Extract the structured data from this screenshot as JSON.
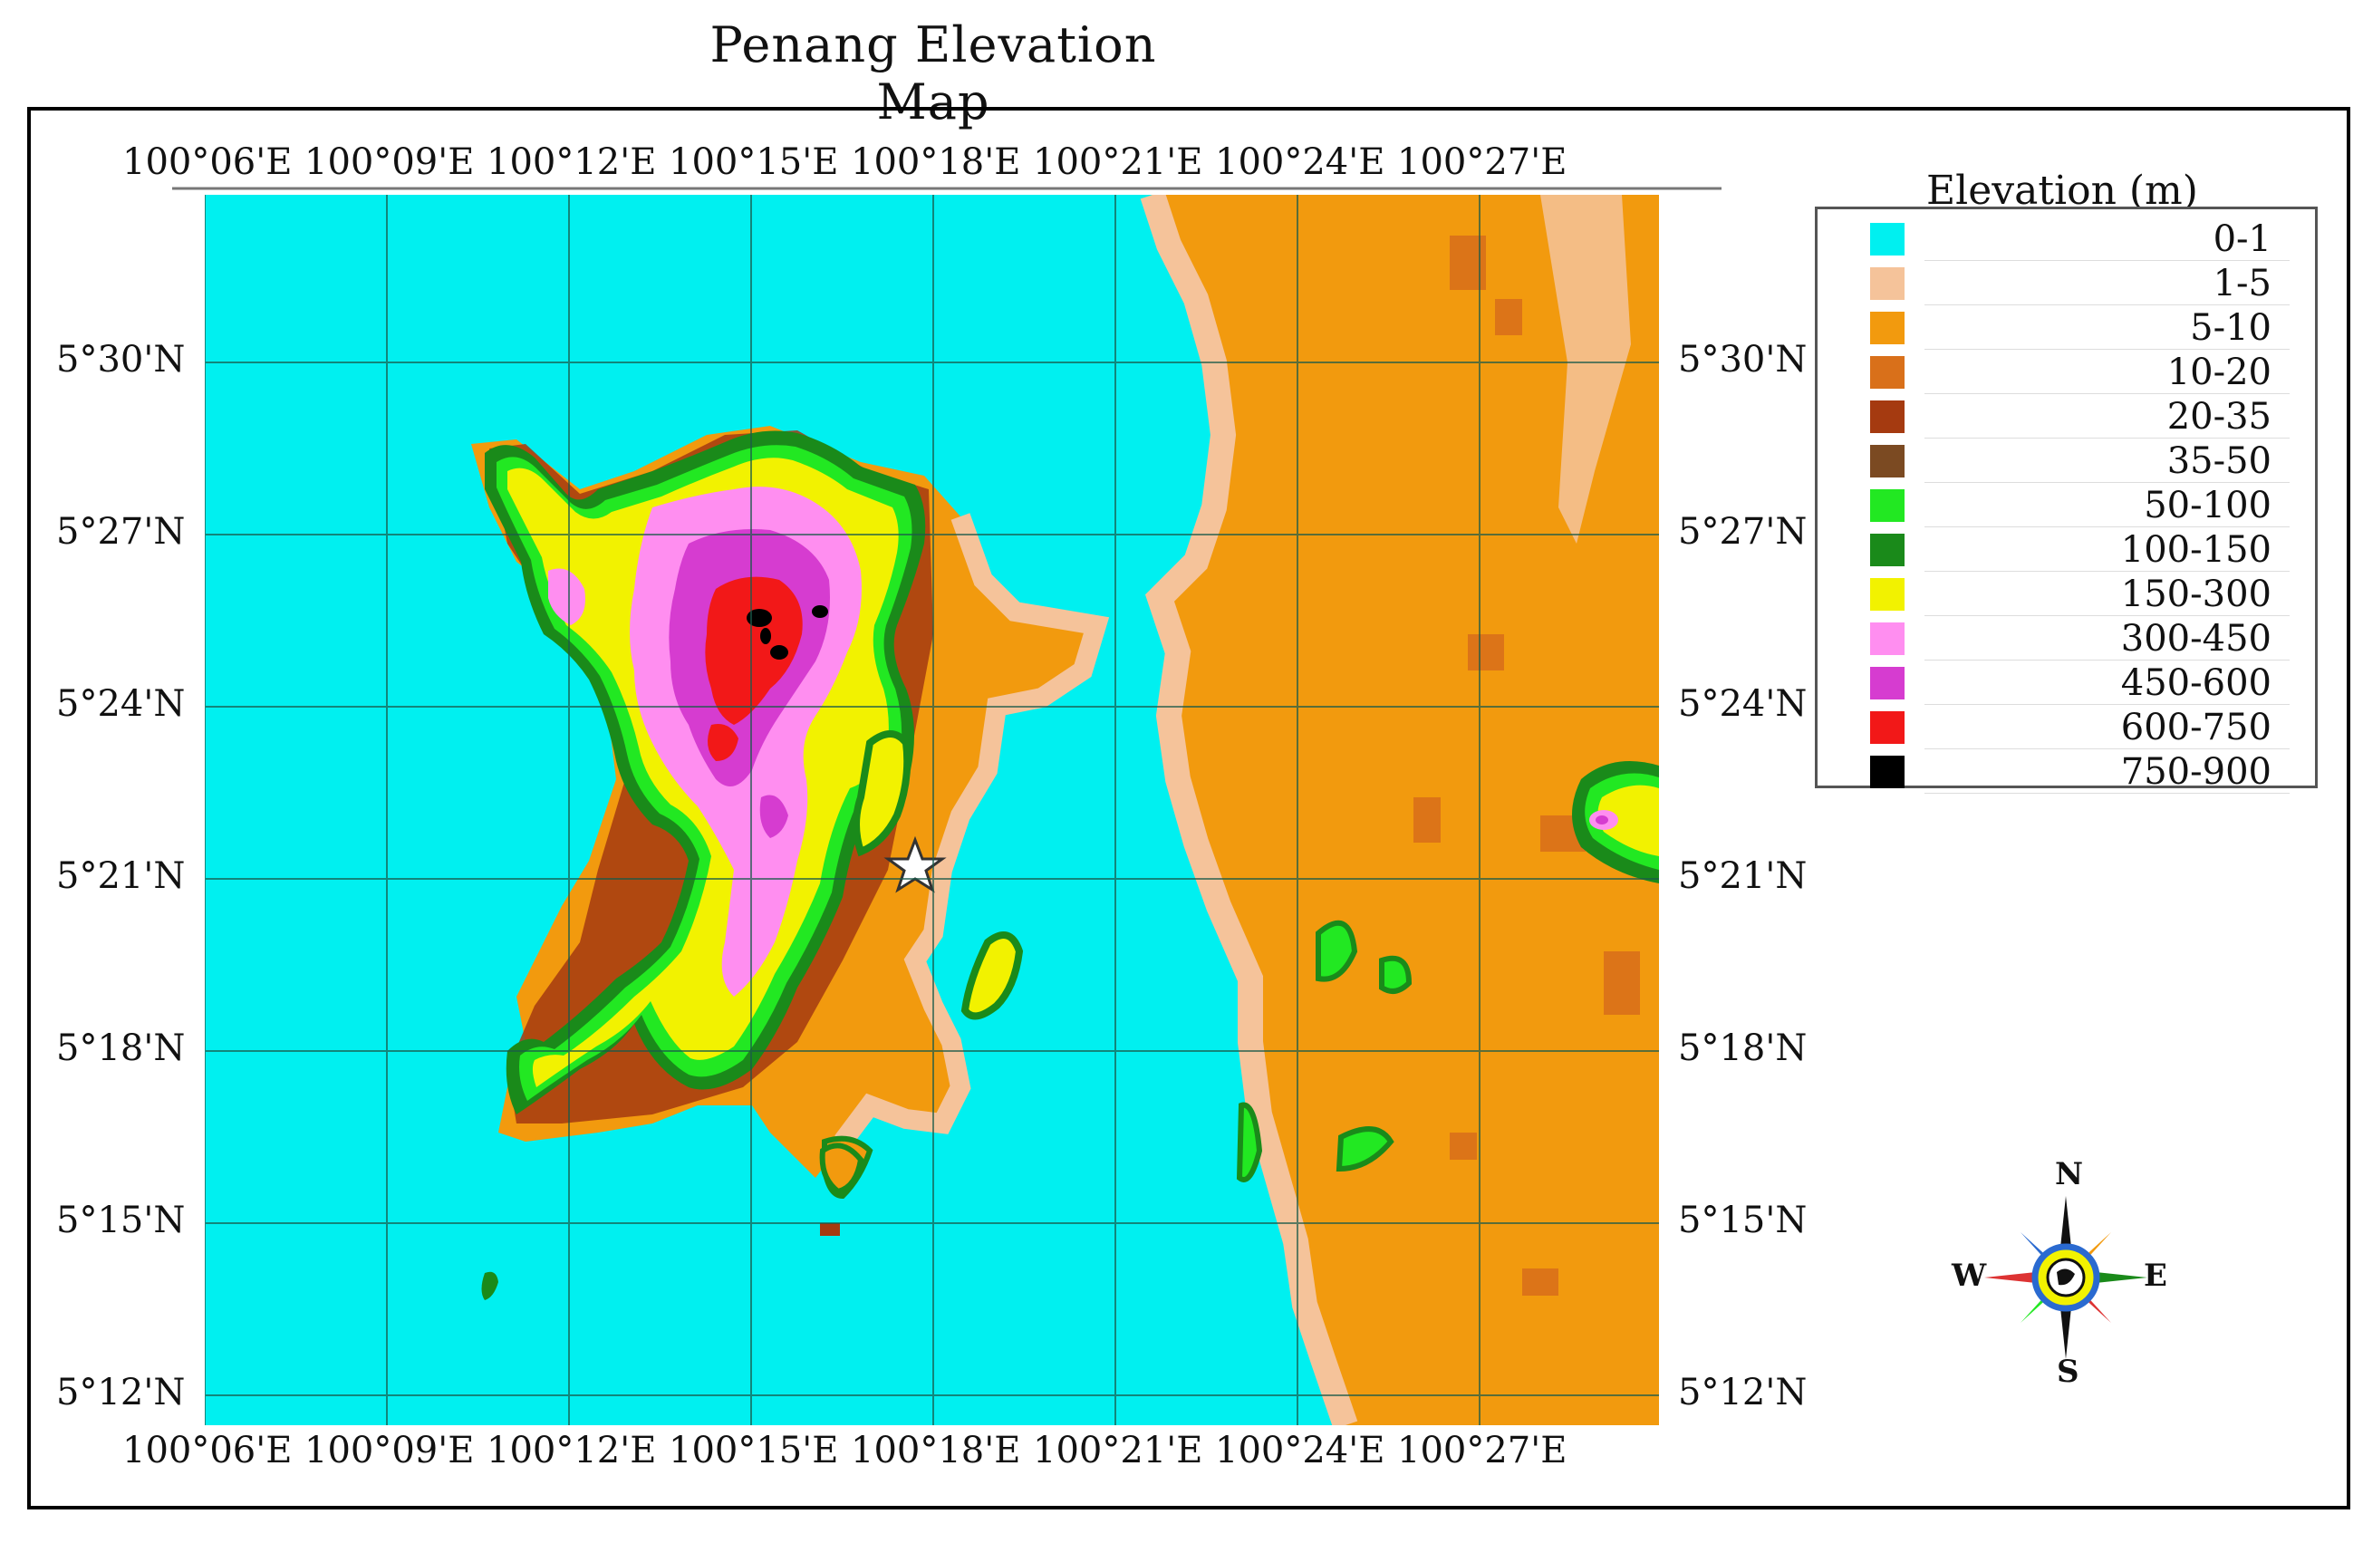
{
  "title": "Penang Elevation Map",
  "x_ticks": [
    "100°06'E",
    "100°09'E",
    "100°12'E",
    "100°15'E",
    "100°18'E",
    "100°21'E",
    "100°24'E",
    "100°27'E"
  ],
  "y_ticks": [
    "5°30'N",
    "5°27'N",
    "5°24'N",
    "5°21'N",
    "5°18'N",
    "5°15'N",
    "5°12'N"
  ],
  "legend": {
    "title": "Elevation (m)",
    "items": [
      {
        "label": "0-1",
        "color": "#00f0f0"
      },
      {
        "label": "1-5",
        "color": "#f5c39a"
      },
      {
        "label": "5-10",
        "color": "#f29a0e"
      },
      {
        "label": "10-20",
        "color": "#d9701a"
      },
      {
        "label": "20-35",
        "color": "#a53a10"
      },
      {
        "label": "35-50",
        "color": "#7b4a22"
      },
      {
        "label": "50-100",
        "color": "#22e822"
      },
      {
        "label": "100-150",
        "color": "#1a8a1a"
      },
      {
        "label": "150-300",
        "color": "#f2f200"
      },
      {
        "label": "300-450",
        "color": "#ff8ef0"
      },
      {
        "label": "450-600",
        "color": "#d63cd0"
      },
      {
        "label": "600-750",
        "color": "#f21818"
      },
      {
        "label": "750-900",
        "color": "#000000"
      }
    ]
  },
  "compass": {
    "n": "N",
    "s": "S",
    "e": "E",
    "w": "W"
  },
  "colors": {
    "sea": "#00f0f0",
    "mainland": "#f29a0e",
    "coast": "#f5c39a",
    "grid": "#1a5a4a"
  }
}
